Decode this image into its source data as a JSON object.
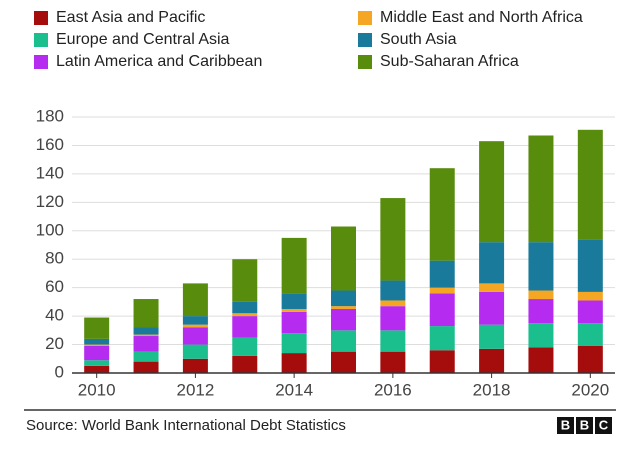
{
  "chart_data": {
    "type": "stacked_bar",
    "categories": [
      "2010",
      null,
      "2012",
      null,
      "2014",
      null,
      "2016",
      null,
      "2018",
      null,
      "2020"
    ],
    "series": [
      {
        "name": "East Asia and Pacific",
        "color": "#a50d0d",
        "values": [
          5,
          8,
          10,
          12,
          14,
          15,
          15,
          16,
          17,
          18,
          19
        ]
      },
      {
        "name": "Europe and Central Asia",
        "color": "#1bbf8d",
        "values": [
          4,
          7,
          10,
          13,
          14,
          15,
          15,
          17,
          17,
          17,
          16
        ]
      },
      {
        "name": "Latin America and Caribbean",
        "color": "#b52bef",
        "values": [
          10,
          11,
          12,
          15,
          15,
          15,
          17,
          23,
          23,
          17,
          16
        ]
      },
      {
        "name": "Middle East and North Africa",
        "color": "#f5a623",
        "values": [
          1,
          1,
          2,
          2,
          2,
          2,
          4,
          4,
          6,
          6,
          6
        ]
      },
      {
        "name": "South Asia",
        "color": "#1a7a9c",
        "values": [
          4,
          5,
          6,
          8,
          11,
          11,
          14,
          19,
          29,
          34,
          37
        ]
      },
      {
        "name": "Sub-Saharan Africa",
        "color": "#588c0c",
        "values": [
          15,
          20,
          23,
          30,
          39,
          45,
          58,
          65,
          71,
          75,
          77
        ]
      }
    ],
    "ylim": [
      0,
      180
    ],
    "yticks": [
      0,
      20,
      40,
      60,
      80,
      100,
      120,
      140,
      160,
      180
    ],
    "grid": true,
    "source": "Source: World Bank International Debt Statistics",
    "logo": [
      "B",
      "B",
      "C"
    ]
  }
}
